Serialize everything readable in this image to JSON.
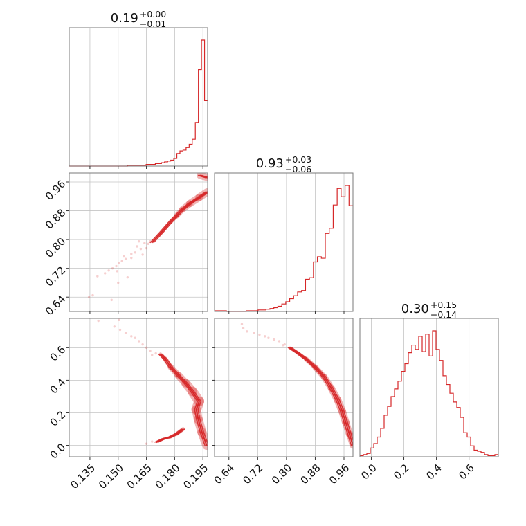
{
  "colors": {
    "series": "#d62728",
    "grid": "#c4c4c4",
    "frame": "#7a7a7a"
  },
  "chart_data": {
    "type": "corner",
    "grid": true,
    "parameters": [
      {
        "title_value": "0.19",
        "title_plus": "+0.00",
        "title_minus": "−0.01",
        "range": [
          0.124,
          0.1975
        ],
        "ticks": [
          0.135,
          0.15,
          0.165,
          0.18,
          0.195
        ],
        "tick_labels": [
          "0.135",
          "0.150",
          "0.165",
          "0.180",
          "0.195"
        ],
        "hist_range": [
          0.124,
          0.1975
        ],
        "hist": [
          0,
          0,
          0,
          0,
          0,
          0,
          0,
          0,
          0,
          0,
          0,
          0,
          0,
          0,
          0,
          0,
          0,
          0,
          0,
          1,
          1,
          1,
          1,
          1,
          1,
          2,
          2,
          2,
          3,
          3,
          4,
          5,
          6,
          7,
          9,
          15,
          18,
          19,
          22,
          26,
          32,
          52,
          115,
          150,
          78
        ]
      },
      {
        "title_value": "0.93",
        "title_plus": "+0.03",
        "title_minus": "−0.06",
        "range": [
          0.6,
          0.985
        ],
        "ticks": [
          0.64,
          0.72,
          0.8,
          0.88,
          0.96
        ],
        "tick_labels": [
          "0.64",
          "0.72",
          "0.80",
          "0.88",
          "0.96"
        ],
        "hist_range": [
          0.6,
          0.985
        ],
        "hist": [
          1,
          1,
          1,
          0,
          0,
          0,
          0,
          0,
          1,
          1,
          1,
          2,
          2,
          3,
          4,
          5,
          7,
          10,
          13,
          17,
          21,
          26,
          28,
          43,
          45,
          66,
          73,
          71,
          104,
          111,
          142,
          164,
          153,
          168,
          141
        ]
      },
      {
        "title_value": "0.30",
        "title_plus": "+0.15",
        "title_minus": "−0.14",
        "range": [
          -0.07,
          0.78
        ],
        "ticks": [
          0.0,
          0.2,
          0.4,
          0.6
        ],
        "tick_labels": [
          "0.0",
          "0.2",
          "0.4",
          "0.6"
        ],
        "hist_range": [
          -0.07,
          0.78
        ],
        "hist": [
          1,
          2,
          3,
          8,
          12,
          18,
          26,
          38,
          46,
          55,
          62,
          69,
          78,
          85,
          95,
          102,
          98,
          110,
          96,
          112,
          92,
          115,
          98,
          88,
          74,
          66,
          58,
          50,
          45,
          36,
          22,
          18,
          10,
          6,
          5,
          4,
          2,
          1,
          1,
          2
        ]
      }
    ],
    "pairs": [
      {
        "x_param": 0,
        "y_param": 1,
        "curve": [
          [
            0.1972,
            0.932
          ],
          [
            0.193,
            0.917
          ],
          [
            0.188,
            0.9
          ],
          [
            0.184,
            0.883
          ],
          [
            0.181,
            0.866
          ],
          [
            0.178,
            0.85
          ],
          [
            0.1755,
            0.835
          ],
          [
            0.173,
            0.82
          ],
          [
            0.1705,
            0.806
          ],
          [
            0.168,
            0.792
          ]
        ],
        "curve_widths": [
          11,
          11,
          10,
          9,
          7,
          5,
          4,
          3,
          2,
          1.5
        ],
        "upper": [
          [
            0.1935,
            0.978
          ],
          [
            0.1975,
            0.972
          ]
        ],
        "scatter": [
          [
            0.166,
            0.788
          ],
          [
            0.164,
            0.79
          ],
          [
            0.162,
            0.774
          ],
          [
            0.159,
            0.764
          ],
          [
            0.157,
            0.76
          ],
          [
            0.154,
            0.746
          ],
          [
            0.152,
            0.74
          ],
          [
            0.1505,
            0.734
          ],
          [
            0.149,
            0.726
          ],
          [
            0.147,
            0.72
          ],
          [
            0.145,
            0.714
          ],
          [
            0.143,
            0.706
          ],
          [
            0.167,
            0.795
          ],
          [
            0.165,
            0.776
          ],
          [
            0.161,
            0.795
          ],
          [
            0.16,
            0.781
          ],
          [
            0.163,
            0.758
          ],
          [
            0.157,
            0.749
          ],
          [
            0.153,
            0.753
          ],
          [
            0.1495,
            0.712
          ],
          [
            0.155,
            0.695
          ],
          [
            0.139,
            0.698
          ],
          [
            0.15,
            0.68
          ],
          [
            0.1365,
            0.645
          ],
          [
            0.1345,
            0.64
          ],
          [
            0.1465,
            0.632
          ]
        ]
      },
      {
        "x_param": 0,
        "y_param": 2,
        "curve": [
          [
            0.197,
            0.0
          ],
          [
            0.1945,
            0.08
          ],
          [
            0.1925,
            0.16
          ],
          [
            0.1915,
            0.22
          ],
          [
            0.193,
            0.27
          ],
          [
            0.1895,
            0.33
          ],
          [
            0.186,
            0.38
          ],
          [
            0.182,
            0.43
          ],
          [
            0.178,
            0.48
          ],
          [
            0.175,
            0.53
          ],
          [
            0.1725,
            0.56
          ]
        ],
        "curve_widths": [
          12,
          14,
          12,
          14,
          15,
          14,
          12,
          10,
          8,
          6,
          4
        ],
        "lower_tail": [
          [
            0.1845,
            0.1
          ],
          [
            0.181,
            0.07
          ],
          [
            0.1775,
            0.05
          ],
          [
            0.174,
            0.04
          ],
          [
            0.1705,
            0.02
          ]
        ],
        "scatter": [
          [
            0.17,
            0.565
          ],
          [
            0.167,
            0.58
          ],
          [
            0.165,
            0.6
          ],
          [
            0.163,
            0.62
          ],
          [
            0.161,
            0.64
          ],
          [
            0.159,
            0.66
          ],
          [
            0.157,
            0.67
          ],
          [
            0.154,
            0.69
          ],
          [
            0.151,
            0.71
          ],
          [
            0.148,
            0.73
          ],
          [
            0.1395,
            0.765
          ],
          [
            0.1505,
            0.77
          ],
          [
            0.168,
            0.023
          ],
          [
            0.165,
            0.01
          ],
          [
            0.168,
            0.555
          ]
        ]
      },
      {
        "x_param": 1,
        "y_param": 2,
        "curve": [
          [
            0.985,
            0.0
          ],
          [
            0.975,
            0.07
          ],
          [
            0.965,
            0.14
          ],
          [
            0.955,
            0.21
          ],
          [
            0.942,
            0.28
          ],
          [
            0.925,
            0.35
          ],
          [
            0.905,
            0.42
          ],
          [
            0.88,
            0.48
          ],
          [
            0.855,
            0.53
          ],
          [
            0.83,
            0.57
          ],
          [
            0.81,
            0.6
          ]
        ],
        "curve_widths": [
          9,
          10,
          11,
          11,
          11,
          10,
          9,
          8,
          6,
          4,
          3
        ],
        "scatter": [
          [
            0.795,
            0.62
          ],
          [
            0.78,
            0.64
          ],
          [
            0.765,
            0.65
          ],
          [
            0.75,
            0.66
          ],
          [
            0.74,
            0.67
          ],
          [
            0.725,
            0.68
          ],
          [
            0.71,
            0.69
          ],
          [
            0.69,
            0.7
          ],
          [
            0.68,
            0.72
          ],
          [
            0.676,
            0.745
          ],
          [
            0.79,
            0.615
          ]
        ]
      }
    ]
  }
}
